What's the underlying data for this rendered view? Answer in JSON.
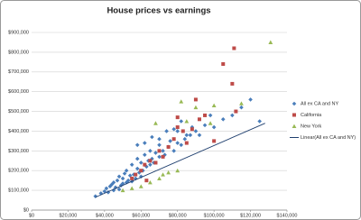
{
  "chart_data": {
    "type": "scatter",
    "title": "House prices vs earnings",
    "xlim": [
      0,
      140000
    ],
    "xticks": [
      {
        "value": 0,
        "label": "$0"
      },
      {
        "value": 20000,
        "label": "$20,000"
      },
      {
        "value": 40000,
        "label": "$40,000"
      },
      {
        "value": 60000,
        "label": "$60,000"
      },
      {
        "value": 80000,
        "label": "$80,000"
      },
      {
        "value": 100000,
        "label": "$100,000"
      },
      {
        "value": 120000,
        "label": "$120,000"
      },
      {
        "value": 140000,
        "label": "$140,000"
      }
    ],
    "ylim": [
      0,
      900000
    ],
    "yticks": [
      {
        "value": 0,
        "label": "$0"
      },
      {
        "value": 100000,
        "label": "$100,000"
      },
      {
        "value": 200000,
        "label": "$200,000"
      },
      {
        "value": 300000,
        "label": "$300,000"
      },
      {
        "value": 400000,
        "label": "$400,000"
      },
      {
        "value": 500000,
        "label": "$500,000"
      },
      {
        "value": 600000,
        "label": "$600,000"
      },
      {
        "value": 700000,
        "label": "$700,000"
      },
      {
        "value": 800000,
        "label": "$800,000"
      },
      {
        "value": 900000,
        "label": "$900,000"
      }
    ],
    "grid": true,
    "legend": "right",
    "series": [
      {
        "name": "All ex CA and NY",
        "color": "#4a7ebb",
        "marker": "diamond",
        "x": [
          35000,
          38000,
          40000,
          41000,
          42000,
          43000,
          44000,
          45000,
          45000,
          46000,
          47000,
          48000,
          48000,
          49000,
          50000,
          50000,
          51000,
          52000,
          52000,
          53000,
          54000,
          55000,
          55000,
          56000,
          57000,
          58000,
          58000,
          59000,
          60000,
          60000,
          61000,
          62000,
          63000,
          64000,
          65000,
          65000,
          66000,
          67000,
          68000,
          70000,
          70000,
          72000,
          73000,
          75000,
          76000,
          78000,
          80000,
          80000,
          82000,
          84000,
          85000,
          88000,
          90000,
          92000,
          95000,
          98000,
          100000,
          105000,
          110000,
          115000,
          120000,
          125000,
          58000,
          62000,
          66000,
          70000,
          74000,
          78000,
          82000,
          87000
        ],
        "values": [
          70000,
          85000,
          95000,
          110000,
          90000,
          120000,
          130000,
          100000,
          140000,
          115000,
          150000,
          105000,
          170000,
          125000,
          160000,
          135000,
          185000,
          140000,
          200000,
          150000,
          175000,
          145000,
          230000,
          180000,
          160000,
          210000,
          260000,
          190000,
          170000,
          240000,
          200000,
          280000,
          220000,
          250000,
          230000,
          300000,
          260000,
          240000,
          290000,
          270000,
          330000,
          300000,
          280000,
          320000,
          350000,
          300000,
          340000,
          400000,
          330000,
          360000,
          380000,
          420000,
          400000,
          380000,
          430000,
          480000,
          420000,
          460000,
          480000,
          520000,
          560000,
          450000,
          330000,
          340000,
          370000,
          360000,
          400000,
          410000,
          450000,
          380000
        ]
      },
      {
        "name": "California",
        "color": "#be4b48",
        "marker": "square",
        "x": [
          111000,
          105000,
          110000,
          90000,
          112000,
          95000,
          92000,
          80000,
          83000,
          78000,
          85000,
          75000,
          70000,
          72000,
          65000,
          62000,
          60000,
          57000,
          55000,
          88000,
          80000,
          100000,
          68000,
          63000
        ],
        "values": [
          820000,
          740000,
          640000,
          560000,
          500000,
          480000,
          460000,
          470000,
          400000,
          360000,
          340000,
          320000,
          300000,
          270000,
          250000,
          230000,
          200000,
          180000,
          160000,
          410000,
          420000,
          350000,
          240000,
          150000
        ]
      },
      {
        "name": "New York",
        "color": "#98b954",
        "marker": "triangle",
        "x": [
          131000,
          90000,
          100000,
          115000,
          82000,
          85000,
          98000,
          75000,
          70000,
          65000,
          60000,
          55000,
          50000,
          80000,
          72000,
          68000
        ],
        "values": [
          850000,
          520000,
          530000,
          540000,
          550000,
          450000,
          440000,
          190000,
          160000,
          140000,
          120000,
          110000,
          100000,
          200000,
          180000,
          440000
        ]
      },
      {
        "name": "Linear(All ex CA and NY)",
        "color": "#1f3f6e",
        "marker": "line",
        "x": [
          35000,
          128000
        ],
        "values": [
          65000,
          440000
        ]
      }
    ]
  }
}
